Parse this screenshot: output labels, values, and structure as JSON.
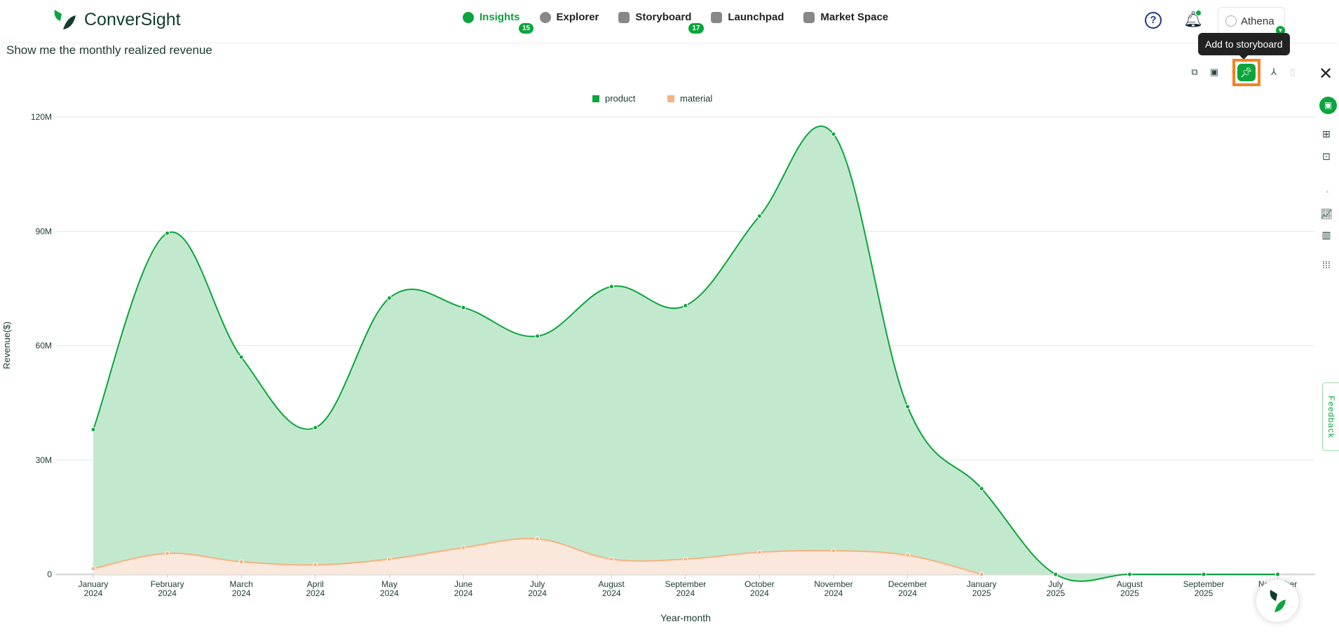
{
  "brand": {
    "name": "ConverSight"
  },
  "nav": [
    {
      "label": "Insights",
      "badge": "15",
      "active": true
    },
    {
      "label": "Explorer"
    },
    {
      "label": "Storyboard",
      "badge": "17"
    },
    {
      "label": "Launchpad"
    },
    {
      "label": "Market Space"
    }
  ],
  "user": {
    "name": "Athena"
  },
  "query": "Show me the monthly realized revenue",
  "tooltip": "Add to storyboard",
  "feedback": "Feedback",
  "chart_data": {
    "type": "area",
    "xlabel": "Year-month",
    "ylabel": "Revenue($)",
    "ylim": [
      0,
      120000000
    ],
    "yticks": [
      "0",
      "30M",
      "60M",
      "90M",
      "120M"
    ],
    "ytick_values": [
      0,
      30000000,
      60000000,
      90000000,
      120000000
    ],
    "grid": true,
    "legend": "top-center",
    "categories": [
      [
        "January",
        "2024"
      ],
      [
        "February",
        "2024"
      ],
      [
        "March",
        "2024"
      ],
      [
        "April",
        "2024"
      ],
      [
        "May",
        "2024"
      ],
      [
        "June",
        "2024"
      ],
      [
        "July",
        "2024"
      ],
      [
        "August",
        "2024"
      ],
      [
        "September",
        "2024"
      ],
      [
        "October",
        "2024"
      ],
      [
        "November",
        "2024"
      ],
      [
        "December",
        "2024"
      ],
      [
        "January",
        "2025"
      ],
      [
        "July",
        "2025"
      ],
      [
        "August",
        "2025"
      ],
      [
        "September",
        "2025"
      ],
      [
        "November",
        "2025"
      ]
    ],
    "series": [
      {
        "name": "product",
        "color": "#0aa53c",
        "fill": "#bfe8cb",
        "values": [
          38,
          89.5,
          57,
          38.5,
          72.5,
          70,
          62.5,
          75.5,
          70.5,
          94,
          115.5,
          44,
          22.5,
          0,
          0,
          0,
          0
        ]
      },
      {
        "name": "material",
        "color": "#f7b183",
        "fill": "#fde8dc",
        "values": [
          1.5,
          5.5,
          3.3,
          2.5,
          4,
          7,
          9.3,
          4,
          4,
          5.8,
          6.2,
          5,
          0,
          null,
          null,
          null,
          null
        ]
      }
    ],
    "value_unit": "M"
  }
}
